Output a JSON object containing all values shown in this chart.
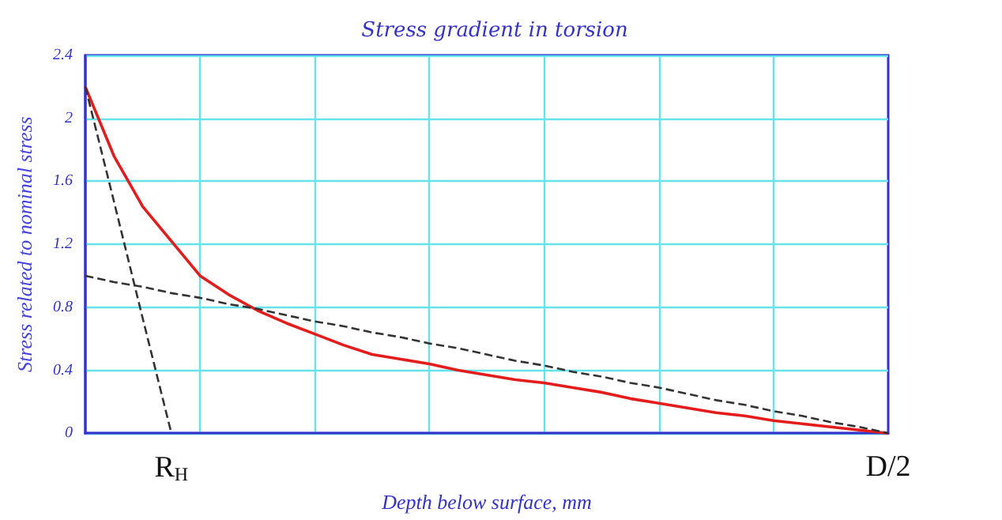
{
  "chart_data": {
    "type": "line",
    "title": "Stress gradient in torsion",
    "xlabel": "Depth below surface, mm",
    "ylabel": "Stress related to nominal stress",
    "categories": [
      null,
      null,
      null,
      "R$_{H}$",
      null,
      null,
      null,
      null,
      null,
      null,
      null,
      null,
      null,
      null,
      null,
      null,
      null,
      null,
      null,
      null,
      null,
      null,
      null,
      null,
      null,
      null,
      null,
      null,
      "D/2"
    ],
    "ylim": [
      0,
      2.4
    ],
    "yticks": [
      0,
      0.4,
      0.8,
      1.2,
      1.6,
      2,
      2.4
    ],
    "grid": true,
    "marker": "none",
    "series": [
      {
        "color": "#e41c1c",
        "line_style": "solid",
        "values": [
          2.2,
          1.76,
          1.44,
          1.22,
          1.0,
          0.88,
          0.78,
          0.7,
          0.63,
          0.56,
          0.5,
          0.47,
          0.44,
          0.4,
          0.37,
          0.34,
          0.32,
          0.29,
          0.26,
          0.22,
          0.19,
          0.16,
          0.13,
          0.11,
          0.08,
          0.06,
          0.04,
          0.02,
          0
        ]
      },
      {
        "color": "#333333",
        "line_style": "dashed",
        "values": [
          2.2,
          1.47,
          0.73,
          0,
          null,
          null,
          null,
          null,
          null,
          null,
          null,
          null,
          null,
          null,
          null,
          null,
          null,
          null,
          null,
          null,
          null,
          null,
          null,
          null,
          null,
          null,
          null,
          null,
          null
        ]
      },
      {
        "color": "#333333",
        "line_style": "dashed",
        "values": [
          1.0,
          0.96,
          0.93,
          0.89,
          0.86,
          0.82,
          0.79,
          0.75,
          0.71,
          0.68,
          0.64,
          0.61,
          0.57,
          0.54,
          0.5,
          0.46,
          0.43,
          0.39,
          0.36,
          0.32,
          0.29,
          0.25,
          0.21,
          0.18,
          0.14,
          0.11,
          0.07,
          0.04,
          0
        ]
      }
    ]
  }
}
